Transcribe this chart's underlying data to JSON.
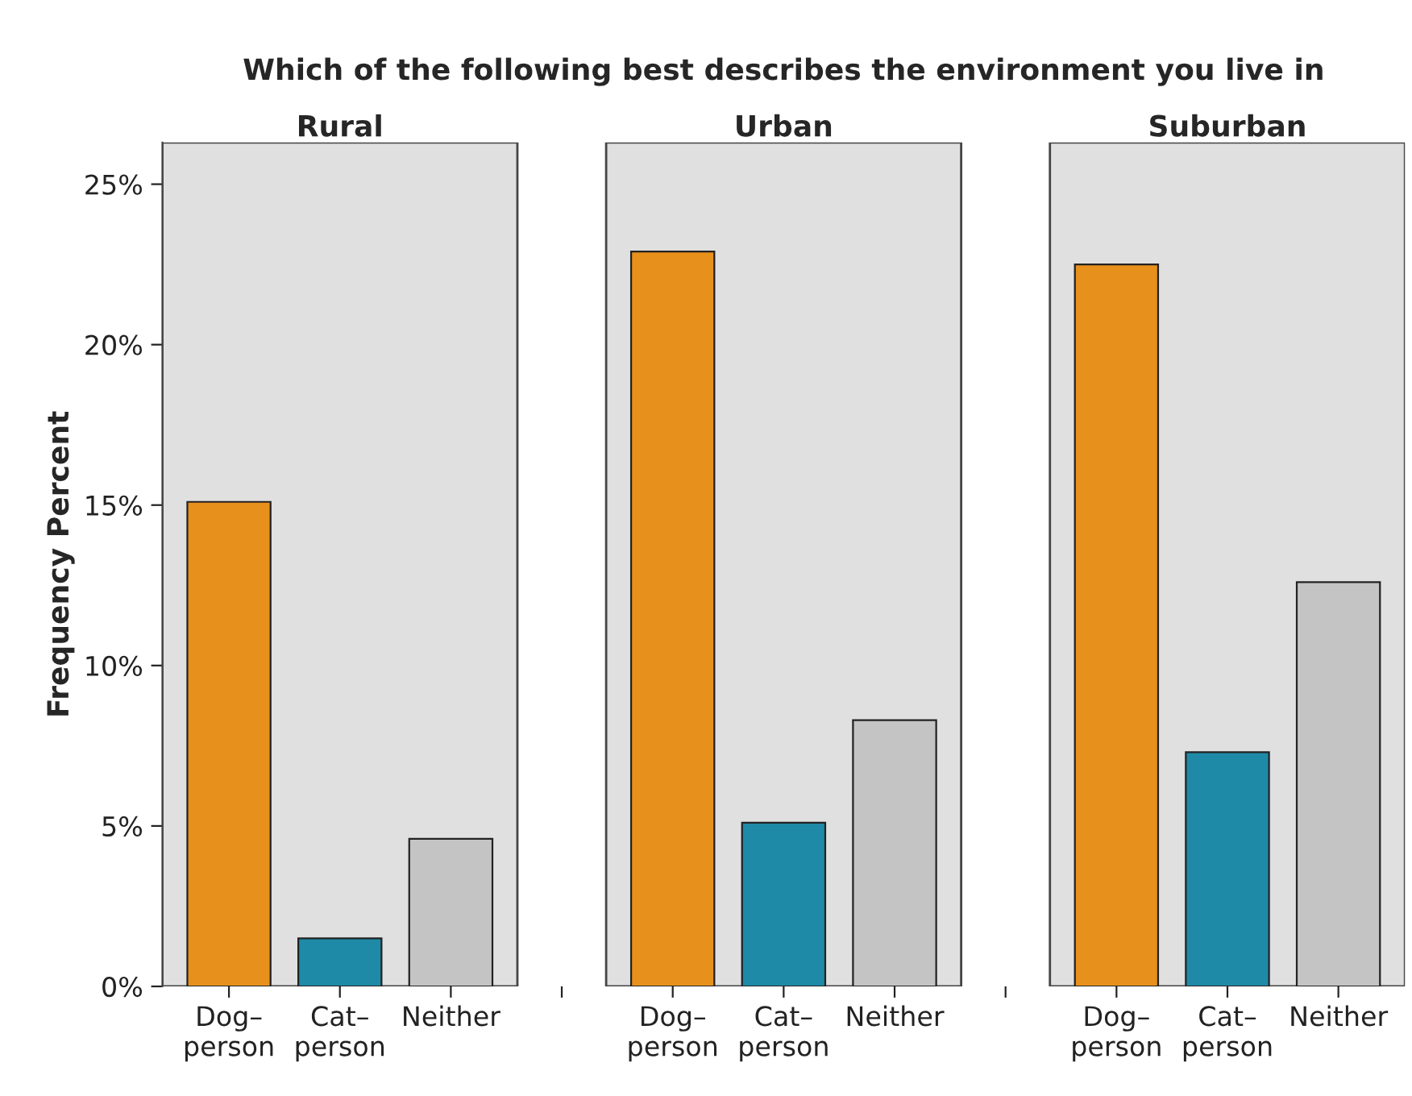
{
  "chart_data": {
    "type": "bar",
    "title": "Which of the following best describes the environment you live in",
    "ylabel": "Frequency Percent",
    "annotations": [
      "Rural",
      "Urban",
      "Suburban"
    ],
    "categories": [
      "Dog–\nperson",
      "Cat–\nperson",
      "Neither",
      null,
      "Dog–\nperson",
      "Cat–\nperson",
      "Neither",
      null,
      "Dog–\nperson",
      "Cat–\nperson",
      "Neither"
    ],
    "values": [
      15.1,
      1.5,
      4.6,
      null,
      22.9,
      5.1,
      8.3,
      null,
      22.5,
      7.3,
      12.6
    ],
    "colors": [
      "#e8901c",
      "#1f8aa8",
      "#c4c4c4",
      null,
      "#e8901c",
      "#1f8aa8",
      "#c4c4c4",
      null,
      "#e8901c",
      "#1f8aa8",
      "#c4c4c4"
    ],
    "ylim": [
      0,
      26.3
    ],
    "yticks": [
      {
        "value": 0,
        "label": "0%"
      },
      {
        "value": 5,
        "label": "5%"
      },
      {
        "value": 10,
        "label": "10%"
      },
      {
        "value": 15,
        "label": "15%"
      },
      {
        "value": 20,
        "label": "20%"
      },
      {
        "value": 25,
        "label": "25%"
      }
    ],
    "grid": false
  }
}
